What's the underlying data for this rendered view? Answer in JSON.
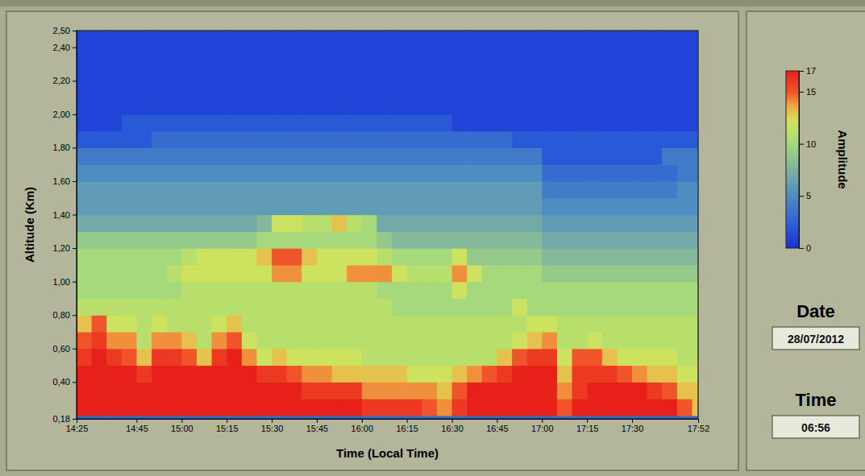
{
  "chart_data": {
    "type": "heatmap",
    "x_label": "Time (Local Time)",
    "y_label": "Altitude (Km)",
    "xlim": [
      865,
      1072
    ],
    "ylim": [
      0.18,
      2.5
    ],
    "xticks": [
      {
        "value": 865,
        "label": "14:25"
      },
      {
        "value": 885,
        "label": "14:45"
      },
      {
        "value": 900,
        "label": "15:00"
      },
      {
        "value": 915,
        "label": "15:15"
      },
      {
        "value": 930,
        "label": "15:30"
      },
      {
        "value": 945,
        "label": "15:45"
      },
      {
        "value": 960,
        "label": "16:00"
      },
      {
        "value": 975,
        "label": "16:15"
      },
      {
        "value": 990,
        "label": "16:30"
      },
      {
        "value": 1005,
        "label": "16:45"
      },
      {
        "value": 1020,
        "label": "17:00"
      },
      {
        "value": 1035,
        "label": "17:15"
      },
      {
        "value": 1050,
        "label": "17:30"
      },
      {
        "value": 1072,
        "label": "17:52"
      }
    ],
    "yticks": [
      {
        "value": 0.18,
        "label": "0,18"
      },
      {
        "value": 0.4,
        "label": "0,40"
      },
      {
        "value": 0.6,
        "label": "0,60"
      },
      {
        "value": 0.8,
        "label": "0,80"
      },
      {
        "value": 1.0,
        "label": "1,00"
      },
      {
        "value": 1.2,
        "label": "1,20"
      },
      {
        "value": 1.4,
        "label": "1,40"
      },
      {
        "value": 1.6,
        "label": "1,60"
      },
      {
        "value": 1.8,
        "label": "1,80"
      },
      {
        "value": 2.0,
        "label": "2,00"
      },
      {
        "value": 2.2,
        "label": "2,20"
      },
      {
        "value": 2.4,
        "label": "2,40"
      },
      {
        "value": 2.5,
        "label": "2,50"
      }
    ],
    "x_edges": [
      865,
      870,
      875,
      880,
      885,
      890,
      895,
      900,
      905,
      910,
      915,
      920,
      925,
      930,
      935,
      940,
      945,
      950,
      955,
      960,
      965,
      970,
      975,
      980,
      985,
      990,
      995,
      1000,
      1005,
      1010,
      1015,
      1020,
      1025,
      1030,
      1035,
      1040,
      1045,
      1050,
      1055,
      1060,
      1065,
      1070,
      1072
    ],
    "y_edges": [
      0.18,
      0.2,
      0.3,
      0.4,
      0.5,
      0.6,
      0.7,
      0.8,
      0.9,
      1.0,
      1.1,
      1.2,
      1.3,
      1.4,
      1.5,
      1.6,
      1.7,
      1.8,
      1.9,
      2.0,
      2.1,
      2.2,
      2.3,
      2.4,
      2.5
    ],
    "cells": [
      [
        3,
        3,
        3,
        3,
        3,
        3,
        3,
        3,
        3,
        3,
        3,
        3,
        3,
        3,
        3,
        3,
        3,
        3,
        3,
        3,
        3,
        3,
        3,
        3,
        3,
        3,
        3,
        3,
        3,
        3,
        3,
        3,
        3,
        3,
        3,
        3,
        3,
        3,
        3,
        3,
        3,
        3
      ],
      [
        17,
        17,
        17,
        17,
        17,
        17,
        17,
        17,
        17,
        17,
        17,
        17,
        17,
        17,
        17,
        17,
        17,
        17,
        17,
        16,
        16,
        16,
        16,
        15,
        14,
        16,
        17,
        17,
        17,
        17,
        17,
        17,
        15,
        17,
        17,
        17,
        17,
        17,
        17,
        17,
        15,
        13
      ],
      [
        17,
        17,
        17,
        17,
        17,
        17,
        17,
        17,
        17,
        17,
        17,
        17,
        17,
        17,
        17,
        16,
        16,
        16,
        16,
        14,
        14,
        14,
        14,
        14,
        13,
        15,
        17,
        17,
        17,
        17,
        17,
        17,
        14,
        16,
        17,
        17,
        17,
        17,
        16,
        15,
        13,
        13
      ],
      [
        17,
        17,
        17,
        17,
        16,
        17,
        17,
        17,
        17,
        17,
        17,
        17,
        16,
        16,
        15,
        14,
        14,
        13,
        13,
        13,
        13,
        13,
        12,
        12,
        12,
        13,
        14,
        15,
        16,
        17,
        17,
        17,
        13,
        16,
        16,
        16,
        15,
        14,
        13,
        13,
        12,
        12
      ],
      [
        16,
        17,
        16,
        15,
        13,
        16,
        16,
        15,
        13,
        16,
        17,
        14,
        12,
        13,
        12,
        12,
        12,
        12,
        12,
        11,
        11,
        11,
        11,
        11,
        11,
        11,
        11,
        11,
        13,
        15,
        16,
        16,
        12,
        15,
        15,
        13,
        12,
        12,
        12,
        12,
        11,
        11
      ],
      [
        15,
        16,
        14,
        14,
        11,
        14,
        14,
        13,
        11,
        14,
        15,
        12,
        11,
        11,
        11,
        11,
        11,
        11,
        11,
        11,
        11,
        11,
        11,
        11,
        11,
        11,
        11,
        11,
        11,
        12,
        13,
        14,
        11,
        11,
        12,
        11,
        11,
        11,
        11,
        11,
        11,
        11
      ],
      [
        13,
        15,
        12,
        12,
        11,
        12,
        11,
        11,
        11,
        12,
        13,
        11,
        11,
        11,
        11,
        11,
        11,
        11,
        11,
        11,
        11,
        11,
        11,
        11,
        11,
        11,
        11,
        11,
        11,
        11,
        12,
        12,
        11,
        11,
        11,
        11,
        11,
        11,
        11,
        11,
        11,
        11
      ],
      [
        11,
        11,
        11,
        11,
        11,
        11,
        11,
        11,
        11,
        11,
        11,
        11,
        11,
        11,
        11,
        11,
        11,
        11,
        11,
        11,
        11,
        10,
        10,
        10,
        10,
        10,
        10,
        10,
        10,
        12,
        10,
        10,
        10,
        10,
        10,
        10,
        10,
        10,
        10,
        10,
        10,
        10
      ],
      [
        10,
        10,
        10,
        10,
        10,
        10,
        10,
        11,
        11,
        11,
        11,
        11,
        11,
        11,
        11,
        11,
        11,
        11,
        11,
        11,
        10,
        10,
        10,
        10,
        10,
        12,
        10,
        10,
        10,
        10,
        10,
        10,
        10,
        10,
        10,
        10,
        10,
        10,
        10,
        10,
        10,
        10
      ],
      [
        10,
        10,
        10,
        10,
        10,
        10,
        11,
        12,
        12,
        12,
        12,
        12,
        12,
        14,
        14,
        12,
        12,
        12,
        14,
        14,
        14,
        12,
        11,
        11,
        11,
        14,
        12,
        10,
        10,
        10,
        10,
        9,
        9,
        9,
        9,
        9,
        9,
        9,
        9,
        9,
        9,
        9
      ],
      [
        10,
        10,
        10,
        10,
        10,
        10,
        10,
        11,
        12,
        12,
        12,
        12,
        13,
        15,
        15,
        13,
        12,
        12,
        12,
        12,
        11,
        10,
        10,
        10,
        10,
        12,
        9,
        9,
        9,
        9,
        9,
        8,
        8,
        8,
        8,
        8,
        8,
        8,
        8,
        8,
        8,
        8
      ],
      [
        9,
        9,
        9,
        9,
        9,
        9,
        9,
        9,
        9,
        9,
        9,
        9,
        10,
        10,
        10,
        10,
        10,
        10,
        10,
        10,
        9,
        8,
        8,
        8,
        8,
        8,
        8,
        8,
        8,
        8,
        8,
        7,
        7,
        7,
        7,
        7,
        7,
        7,
        7,
        7,
        7,
        7
      ],
      [
        7,
        7,
        7,
        7,
        7,
        7,
        7,
        7,
        7,
        7,
        7,
        7,
        8,
        12,
        12,
        11,
        11,
        13,
        11,
        10,
        7,
        7,
        7,
        7,
        7,
        7,
        7,
        7,
        7,
        7,
        7,
        6,
        6,
        6,
        6,
        6,
        6,
        6,
        6,
        6,
        6,
        6
      ],
      [
        6,
        6,
        6,
        6,
        6,
        6,
        6,
        6,
        6,
        6,
        6,
        6,
        6,
        6,
        6,
        6,
        6,
        6,
        6,
        6,
        6,
        6,
        6,
        6,
        6,
        6,
        6,
        6,
        6,
        6,
        6,
        5,
        5,
        5,
        5,
        5,
        5,
        5,
        5,
        5,
        5,
        5
      ],
      [
        6,
        6,
        6,
        6,
        6,
        6,
        6,
        6,
        6,
        6,
        6,
        6,
        6,
        6,
        6,
        6,
        6,
        6,
        6,
        6,
        6,
        6,
        6,
        6,
        6,
        6,
        6,
        6,
        6,
        6,
        6,
        4,
        4,
        4,
        4,
        4,
        4,
        4,
        4,
        4,
        5,
        5
      ],
      [
        5,
        5,
        5,
        5,
        5,
        5,
        5,
        5,
        5,
        5,
        5,
        5,
        5,
        5,
        5,
        5,
        5,
        5,
        5,
        5,
        5,
        5,
        5,
        5,
        5,
        5,
        5,
        5,
        5,
        5,
        5,
        3,
        3,
        3,
        3,
        3,
        3,
        3,
        3,
        3,
        4,
        4
      ],
      [
        4,
        4,
        4,
        4,
        4,
        4,
        4,
        4,
        4,
        4,
        4,
        4,
        4,
        4,
        4,
        4,
        4,
        4,
        4,
        4,
        4,
        4,
        4,
        4,
        4,
        4,
        4,
        4,
        4,
        4,
        4,
        2,
        2,
        2,
        2,
        2,
        2,
        2,
        2,
        4,
        4,
        4
      ],
      [
        2,
        2,
        2,
        2,
        2,
        3,
        3,
        3,
        3,
        3,
        3,
        3,
        3,
        3,
        3,
        3,
        3,
        3,
        3,
        3,
        3,
        3,
        3,
        3,
        3,
        3,
        3,
        3,
        3,
        2,
        2,
        2,
        2,
        2,
        2,
        2,
        2,
        2,
        2,
        2,
        2,
        2
      ],
      [
        1,
        1,
        1,
        2,
        2,
        2,
        2,
        2,
        2,
        2,
        2,
        2,
        2,
        2,
        2,
        2,
        2,
        2,
        2,
        2,
        2,
        2,
        2,
        2,
        2,
        1,
        1,
        1,
        1,
        1,
        1,
        1,
        1,
        1,
        1,
        1,
        1,
        1,
        1,
        1,
        1,
        1
      ],
      [
        1,
        1,
        1,
        1,
        1,
        1,
        1,
        1,
        1,
        1,
        1,
        1,
        1,
        1,
        1,
        1,
        1,
        1,
        1,
        1,
        1,
        1,
        1,
        1,
        1,
        1,
        1,
        1,
        1,
        1,
        1,
        1,
        1,
        1,
        1,
        1,
        1,
        1,
        1,
        1,
        1,
        1
      ],
      [
        1,
        1,
        1,
        1,
        1,
        1,
        1,
        1,
        1,
        1,
        1,
        1,
        1,
        1,
        1,
        1,
        1,
        1,
        1,
        1,
        1,
        1,
        1,
        1,
        1,
        1,
        1,
        1,
        1,
        1,
        1,
        1,
        1,
        1,
        1,
        1,
        1,
        1,
        1,
        1,
        1,
        1
      ],
      [
        1,
        1,
        1,
        1,
        1,
        1,
        1,
        1,
        1,
        1,
        1,
        1,
        1,
        1,
        1,
        1,
        1,
        1,
        1,
        1,
        1,
        1,
        1,
        1,
        1,
        1,
        1,
        1,
        1,
        1,
        1,
        1,
        1,
        1,
        1,
        1,
        1,
        1,
        1,
        1,
        1,
        1
      ],
      [
        1,
        1,
        1,
        1,
        1,
        1,
        1,
        1,
        1,
        1,
        1,
        1,
        1,
        1,
        1,
        1,
        1,
        1,
        1,
        1,
        1,
        1,
        1,
        1,
        1,
        1,
        1,
        1,
        1,
        1,
        1,
        1,
        1,
        1,
        1,
        1,
        1,
        1,
        1,
        1,
        1,
        1
      ],
      [
        1,
        1,
        1,
        1,
        1,
        1,
        1,
        1,
        1,
        1,
        1,
        1,
        1,
        1,
        1,
        1,
        1,
        1,
        1,
        1,
        1,
        1,
        1,
        1,
        1,
        1,
        1,
        1,
        1,
        1,
        1,
        1,
        1,
        1,
        1,
        1,
        1,
        1,
        1,
        1,
        1,
        1
      ]
    ],
    "colorbar": {
      "label": "Amplitude",
      "range": [
        0,
        17
      ],
      "ticks": [
        0,
        5,
        10,
        15,
        17
      ]
    },
    "annotations": [
      {
        "label": "Date",
        "value": "28/07/2012"
      },
      {
        "label": "Time",
        "value": "06:56"
      }
    ]
  }
}
